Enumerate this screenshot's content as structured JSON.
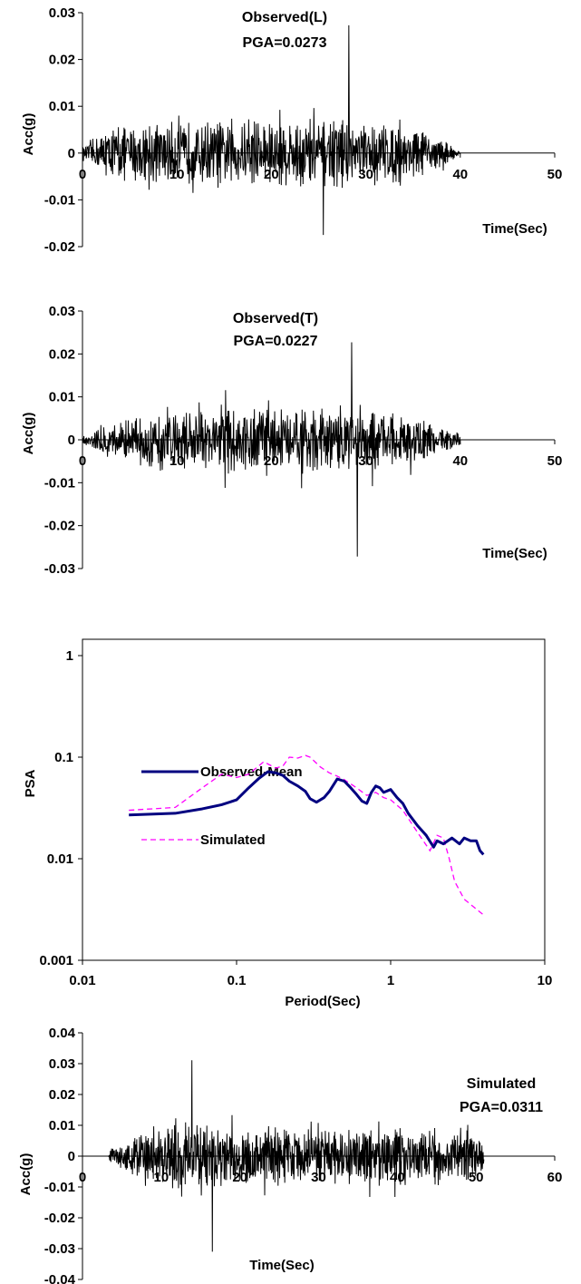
{
  "chart_data": [
    {
      "type": "line",
      "title": "Observed(L)",
      "subtitle": "PGA=0.0273",
      "xlabel": "Time(Sec)",
      "ylabel": "Acc(g)",
      "xlim": [
        0,
        50
      ],
      "ylim": [
        -0.02,
        0.03
      ],
      "x_ticks": [
        "0",
        "10",
        "20",
        "30",
        "40",
        "50"
      ],
      "y_ticks": [
        "0.03",
        "0.02",
        "0.01",
        "0",
        "-0.01",
        "-0.02"
      ],
      "grid": false,
      "record": {
        "start": 0,
        "end": 40,
        "dt": 0.05,
        "peak": 0.0273,
        "peak_time": 28.2,
        "min": -0.0175,
        "min_time": 25.5,
        "envelope": [
          [
            0,
            0.001
          ],
          [
            1,
            0.004
          ],
          [
            3,
            0.007
          ],
          [
            10,
            0.009
          ],
          [
            25,
            0.01
          ],
          [
            33,
            0.009
          ],
          [
            36,
            0.006
          ],
          [
            38,
            0.004
          ],
          [
            39.5,
            0.0015
          ],
          [
            40,
            0
          ]
        ]
      },
      "series": [
        {
          "values": []
        }
      ]
    },
    {
      "type": "line",
      "title": "Observed(T)",
      "subtitle": "PGA=0.0227",
      "xlabel": "Time(Sec)",
      "ylabel": "Acc(g)",
      "xlim": [
        0,
        50
      ],
      "ylim": [
        -0.03,
        0.03
      ],
      "x_ticks": [
        "0",
        "10",
        "20",
        "30",
        "40",
        "50"
      ],
      "y_ticks": [
        "0.03",
        "0.02",
        "0.01",
        "0",
        "-0.01",
        "-0.02",
        "-0.03"
      ],
      "grid": false,
      "record": {
        "start": 0,
        "end": 40,
        "dt": 0.05,
        "peak": 0.0227,
        "peak_time": 28.5,
        "min": -0.0272,
        "min_time": 29.1,
        "envelope": [
          [
            0,
            0.001
          ],
          [
            2,
            0.005
          ],
          [
            8,
            0.009
          ],
          [
            18,
            0.01
          ],
          [
            28,
            0.011
          ],
          [
            32,
            0.009
          ],
          [
            35,
            0.007
          ],
          [
            38,
            0.004
          ],
          [
            40,
            0.002
          ]
        ]
      },
      "series": [
        {
          "values": []
        }
      ]
    },
    {
      "type": "line",
      "xlabel": "Period(Sec)",
      "ylabel": "PSA",
      "log_x": true,
      "log_y": true,
      "xlim": [
        0.01,
        10
      ],
      "ylim": [
        0.001,
        1
      ],
      "x_ticks": [
        "0.01",
        "0.1",
        "1",
        "10"
      ],
      "y_ticks": [
        "1",
        "0.1",
        "0.01",
        "0.001"
      ],
      "grid": false,
      "legend": "inside-left",
      "series": [
        {
          "name": "Observed-Mean",
          "color": "#000080",
          "style": "solid",
          "x": [
            0.02,
            0.04,
            0.06,
            0.08,
            0.1,
            0.12,
            0.14,
            0.16,
            0.18,
            0.2,
            0.22,
            0.25,
            0.28,
            0.3,
            0.33,
            0.37,
            0.4,
            0.45,
            0.5,
            0.55,
            0.6,
            0.65,
            0.7,
            0.75,
            0.8,
            0.85,
            0.9,
            1.0,
            1.1,
            1.2,
            1.3,
            1.5,
            1.7,
            1.9,
            2.0,
            2.2,
            2.5,
            2.8,
            3.0,
            3.3,
            3.6,
            3.8,
            4.0
          ],
          "y": [
            0.027,
            0.028,
            0.031,
            0.034,
            0.038,
            0.05,
            0.062,
            0.072,
            0.07,
            0.066,
            0.058,
            0.052,
            0.046,
            0.039,
            0.036,
            0.04,
            0.046,
            0.061,
            0.058,
            0.05,
            0.043,
            0.037,
            0.035,
            0.045,
            0.052,
            0.05,
            0.045,
            0.048,
            0.04,
            0.035,
            0.028,
            0.021,
            0.017,
            0.013,
            0.015,
            0.014,
            0.016,
            0.014,
            0.016,
            0.015,
            0.015,
            0.012,
            0.011
          ]
        },
        {
          "name": "Simulated",
          "color": "#ff00ff",
          "style": "dashed",
          "x": [
            0.02,
            0.04,
            0.06,
            0.08,
            0.1,
            0.12,
            0.15,
            0.18,
            0.2,
            0.22,
            0.25,
            0.28,
            0.3,
            0.35,
            0.4,
            0.45,
            0.5,
            0.6,
            0.7,
            0.8,
            0.9,
            1.0,
            1.2,
            1.5,
            1.8,
            2.0,
            2.2,
            2.4,
            2.6,
            3.0,
            3.5,
            4.0
          ],
          "y": [
            0.03,
            0.032,
            0.05,
            0.068,
            0.063,
            0.068,
            0.09,
            0.078,
            0.082,
            0.1,
            0.098,
            0.104,
            0.1,
            0.08,
            0.07,
            0.065,
            0.06,
            0.05,
            0.042,
            0.045,
            0.04,
            0.038,
            0.03,
            0.018,
            0.012,
            0.017,
            0.016,
            0.01,
            0.006,
            0.004,
            0.0033,
            0.0028
          ]
        }
      ]
    },
    {
      "type": "line",
      "title": "Simulated",
      "subtitle": "PGA=0.0311",
      "xlabel": "Time(Sec)",
      "ylabel": "Acc(g)",
      "xlim": [
        0,
        60
      ],
      "ylim": [
        -0.04,
        0.04
      ],
      "x_ticks": [
        "0",
        "10",
        "20",
        "30",
        "40",
        "50",
        "60"
      ],
      "y_ticks": [
        "0.04",
        "0.03",
        "0.02",
        "0.01",
        "0",
        "-0.01",
        "-0.02",
        "-0.03",
        "-0.04"
      ],
      "grid": false,
      "record": {
        "start": 3.3,
        "end": 51,
        "dt": 0.05,
        "peak": 0.0311,
        "peak_time": 13.9,
        "min": -0.031,
        "min_time": 16.5,
        "envelope": [
          [
            3.3,
            0
          ],
          [
            3.6,
            0.004
          ],
          [
            5,
            0.006
          ],
          [
            8,
            0.012
          ],
          [
            12,
            0.014
          ],
          [
            18,
            0.013
          ],
          [
            25,
            0.012
          ],
          [
            35,
            0.011
          ],
          [
            45,
            0.011
          ],
          [
            50,
            0.01
          ],
          [
            51,
            0.004
          ]
        ]
      },
      "series": [
        {
          "values": []
        }
      ]
    }
  ]
}
